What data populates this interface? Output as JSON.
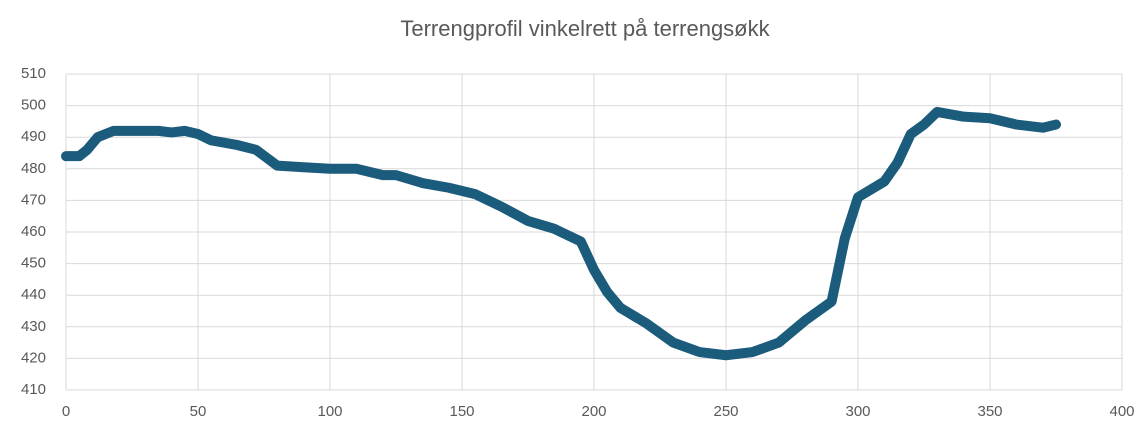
{
  "chart_data": {
    "type": "line",
    "title": "Terrengprofil vinkelrett på terrengsøkk",
    "series": [
      {
        "color": "#1b5b7b",
        "x": [
          0,
          5,
          8,
          12,
          18,
          25,
          35,
          40,
          45,
          50,
          55,
          65,
          72,
          80,
          90,
          100,
          110,
          120,
          125,
          135,
          145,
          155,
          165,
          175,
          185,
          195,
          200,
          205,
          210,
          220,
          230,
          240,
          250,
          260,
          270,
          280,
          290,
          295,
          300,
          310,
          315,
          320,
          325,
          330,
          340,
          350,
          360,
          370,
          375
        ],
        "values": [
          484,
          484,
          486,
          490,
          492,
          492,
          492,
          491.5,
          492,
          491,
          489,
          487.5,
          486,
          481,
          480.5,
          480,
          480,
          478,
          478,
          475.5,
          474,
          472,
          468,
          463.5,
          461,
          457,
          448,
          441,
          436,
          431,
          425,
          422,
          421,
          422,
          425,
          432,
          438,
          458,
          471,
          476,
          482,
          491,
          494,
          498,
          496.5,
          496,
          494,
          493,
          494
        ]
      }
    ],
    "xlim": [
      0,
      400
    ],
    "xticks": [
      0,
      50,
      100,
      150,
      200,
      250,
      300,
      350,
      400
    ],
    "ylim": [
      410,
      510
    ],
    "yticks": [
      410,
      420,
      430,
      440,
      450,
      460,
      470,
      480,
      490,
      500,
      510
    ],
    "grid": true
  }
}
